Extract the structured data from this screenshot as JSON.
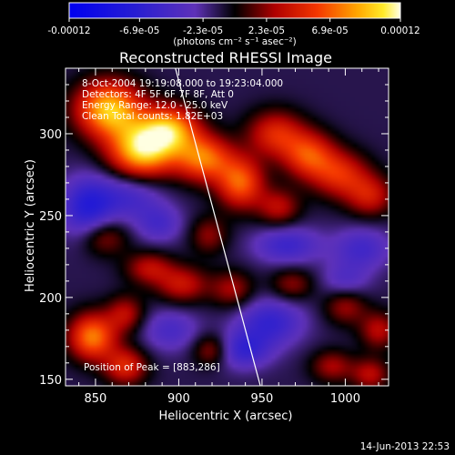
{
  "chart_data": {
    "type": "heatmap",
    "title": "Reconstructed RHESSI Image",
    "xlabel": "Heliocentric X (arcsec)",
    "ylabel": "Heliocentric Y (arcsec)",
    "xlim": [
      832,
      1026
    ],
    "ylim": [
      146,
      340
    ],
    "x_ticks": [
      850,
      900,
      950,
      1000
    ],
    "y_ticks": [
      150,
      200,
      250,
      300
    ],
    "colorbar": {
      "tick_labels": [
        "-0.00012",
        "-6.9e-05",
        "-2.3e-05",
        "2.3e-05",
        "6.9e-05",
        "0.00012"
      ],
      "tick_values": [
        -0.00012,
        -6.9e-05,
        -2.3e-05,
        2.3e-05,
        6.9e-05,
        0.00012
      ],
      "units_label": "(photons cm⁻² s⁻¹ asec⁻²)",
      "range": [
        -0.00012,
        0.00012
      ]
    },
    "annotations": [
      "8-Oct-2004 19:19:08.000 to 19:23:04.000",
      "Detectors: 4F 5F 6F 7F 8F, Att 0",
      "Energy Range: 12.0 - 25.0 keV",
      "Clean    Total counts: 1.82E+03"
    ],
    "peak_label": "Position of Peak = [883,286]",
    "peak": [
      883,
      286
    ],
    "limb_line": [
      [
        898,
        340
      ],
      [
        949,
        146
      ]
    ],
    "emission_blobs": [
      {
        "x": 858,
        "y": 315,
        "value": 0.00011,
        "sx": 14,
        "sy": 12
      },
      {
        "x": 878,
        "y": 290,
        "value": 0.000115,
        "sx": 14,
        "sy": 12
      },
      {
        "x": 895,
        "y": 303,
        "value": 9e-05,
        "sx": 12,
        "sy": 10
      },
      {
        "x": 915,
        "y": 285,
        "value": 8.5e-05,
        "sx": 12,
        "sy": 10
      },
      {
        "x": 937,
        "y": 270,
        "value": 8e-05,
        "sx": 10,
        "sy": 11
      },
      {
        "x": 958,
        "y": 300,
        "value": 6e-05,
        "sx": 12,
        "sy": 10
      },
      {
        "x": 978,
        "y": 287,
        "value": 7e-05,
        "sx": 11,
        "sy": 10
      },
      {
        "x": 997,
        "y": 275,
        "value": 6e-05,
        "sx": 12,
        "sy": 10
      },
      {
        "x": 1015,
        "y": 262,
        "value": 5e-05,
        "sx": 10,
        "sy": 9
      },
      {
        "x": 960,
        "y": 255,
        "value": 4.5e-05,
        "sx": 9,
        "sy": 8
      },
      {
        "x": 918,
        "y": 238,
        "value": 3.5e-05,
        "sx": 8,
        "sy": 8
      },
      {
        "x": 882,
        "y": 218,
        "value": 4.5e-05,
        "sx": 10,
        "sy": 7
      },
      {
        "x": 902,
        "y": 208,
        "value": 5e-05,
        "sx": 11,
        "sy": 8
      },
      {
        "x": 932,
        "y": 205,
        "value": 4e-05,
        "sx": 9,
        "sy": 8
      },
      {
        "x": 968,
        "y": 208,
        "value": 3.5e-05,
        "sx": 9,
        "sy": 7
      },
      {
        "x": 1000,
        "y": 195,
        "value": 4e-05,
        "sx": 9,
        "sy": 8
      },
      {
        "x": 1020,
        "y": 180,
        "value": 4.5e-05,
        "sx": 8,
        "sy": 8
      },
      {
        "x": 848,
        "y": 176,
        "value": 9e-05,
        "sx": 10,
        "sy": 10
      },
      {
        "x": 868,
        "y": 190,
        "value": 4.5e-05,
        "sx": 8,
        "sy": 8
      },
      {
        "x": 868,
        "y": 158,
        "value": 6e-05,
        "sx": 9,
        "sy": 8
      },
      {
        "x": 920,
        "y": 168,
        "value": 4.5e-05,
        "sx": 8,
        "sy": 7
      },
      {
        "x": 992,
        "y": 158,
        "value": 4e-05,
        "sx": 9,
        "sy": 7
      },
      {
        "x": 1015,
        "y": 153,
        "value": 4.5e-05,
        "sx": 8,
        "sy": 7
      },
      {
        "x": 855,
        "y": 237,
        "value": 4e-05,
        "sx": 10,
        "sy": 8
      },
      {
        "x": 870,
        "y": 262,
        "value": -4e-05,
        "sx": 14,
        "sy": 10
      },
      {
        "x": 845,
        "y": 255,
        "value": -6e-05,
        "sx": 11,
        "sy": 13
      },
      {
        "x": 955,
        "y": 185,
        "value": -5e-05,
        "sx": 14,
        "sy": 10
      },
      {
        "x": 938,
        "y": 168,
        "value": -5e-05,
        "sx": 12,
        "sy": 8
      },
      {
        "x": 965,
        "y": 232,
        "value": -4.5e-05,
        "sx": 14,
        "sy": 8
      },
      {
        "x": 1010,
        "y": 230,
        "value": -4e-05,
        "sx": 12,
        "sy": 9
      },
      {
        "x": 895,
        "y": 180,
        "value": -3.5e-05,
        "sx": 12,
        "sy": 9
      },
      {
        "x": 1000,
        "y": 210,
        "value": -3e-05,
        "sx": 10,
        "sy": 8
      },
      {
        "x": 888,
        "y": 245,
        "value": -3.5e-05,
        "sx": 10,
        "sy": 8
      }
    ]
  },
  "footer": {
    "timestamp": "14-Jun-2013 22:53"
  }
}
